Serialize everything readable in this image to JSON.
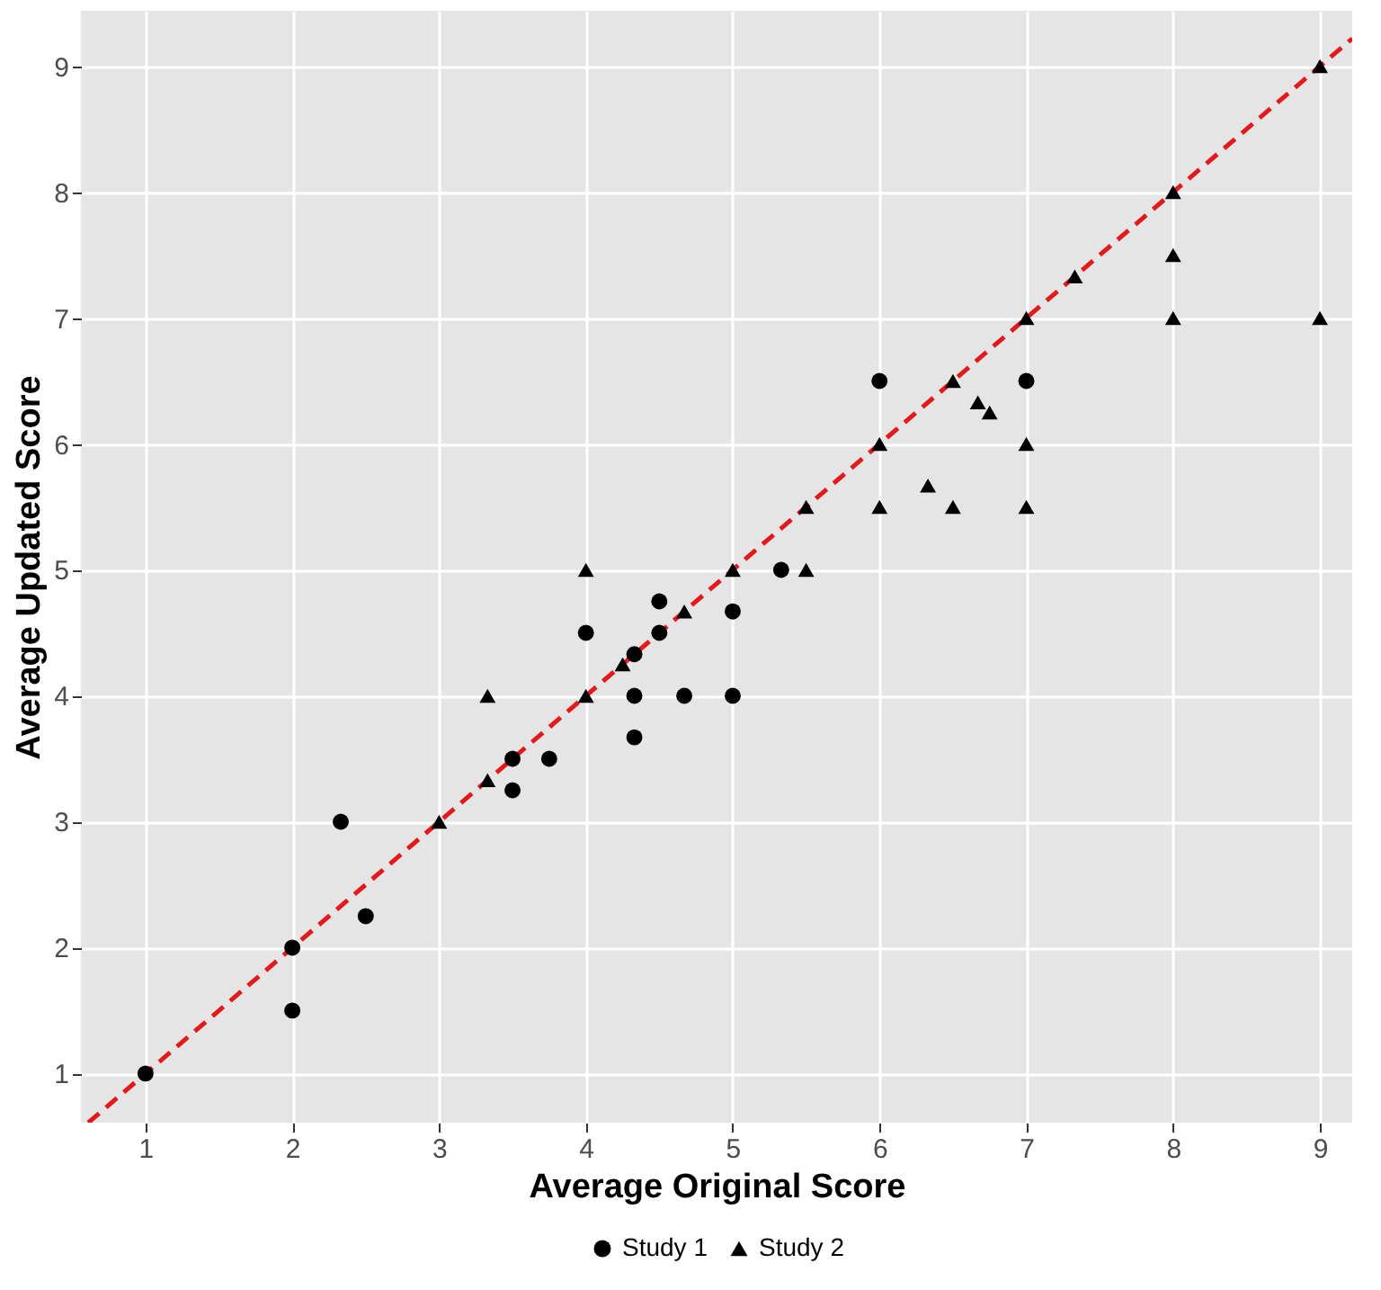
{
  "chart_data": {
    "type": "scatter",
    "xlabel": "Average Original Score",
    "ylabel": "Average Updated Score",
    "xlim": [
      0.56,
      9.22
    ],
    "ylim": [
      0.61,
      9.44
    ],
    "xticks": [
      1,
      2,
      3,
      4,
      5,
      6,
      7,
      8,
      9
    ],
    "yticks": [
      1,
      2,
      3,
      4,
      5,
      6,
      7,
      8,
      9
    ],
    "grid": true,
    "legend": "bottom",
    "series": [
      {
        "name": "Study 1",
        "color": "#000000",
        "marker": "circle",
        "x": [
          1,
          2,
          2,
          2.33,
          2.5,
          3.5,
          3.5,
          3.75,
          4,
          4.33,
          4.33,
          4.33,
          4.5,
          4.5,
          4.67,
          5,
          5,
          5.33,
          6,
          7
        ],
        "values": [
          1,
          2,
          1.5,
          3,
          2.25,
          3.5,
          3.25,
          3.5,
          4.5,
          4.33,
          4,
          3.67,
          4.75,
          4.5,
          4,
          4.67,
          4,
          5,
          6.5,
          6.5
        ]
      },
      {
        "name": "Study 2",
        "color": "#000000",
        "marker": "triangle",
        "x": [
          3,
          3.33,
          3.33,
          4,
          4,
          4.25,
          4.67,
          5,
          5.5,
          5.5,
          6,
          6,
          6.33,
          6.5,
          6.5,
          6.67,
          6.75,
          7,
          7,
          7,
          7.33,
          8,
          8,
          8,
          9,
          9
        ],
        "values": [
          3,
          3.33,
          4,
          4,
          5,
          4.25,
          4.67,
          5,
          5,
          5.5,
          6,
          5.5,
          5.67,
          5.5,
          6.5,
          6.33,
          6.25,
          7,
          6,
          5.5,
          7.33,
          8,
          7.5,
          7,
          9,
          7
        ]
      },
      {
        "type": "line",
        "color": "#e31a1c",
        "line_style": "dashed",
        "x": [
          0.61,
          9.22
        ],
        "values": [
          0.61,
          9.22
        ]
      }
    ]
  }
}
